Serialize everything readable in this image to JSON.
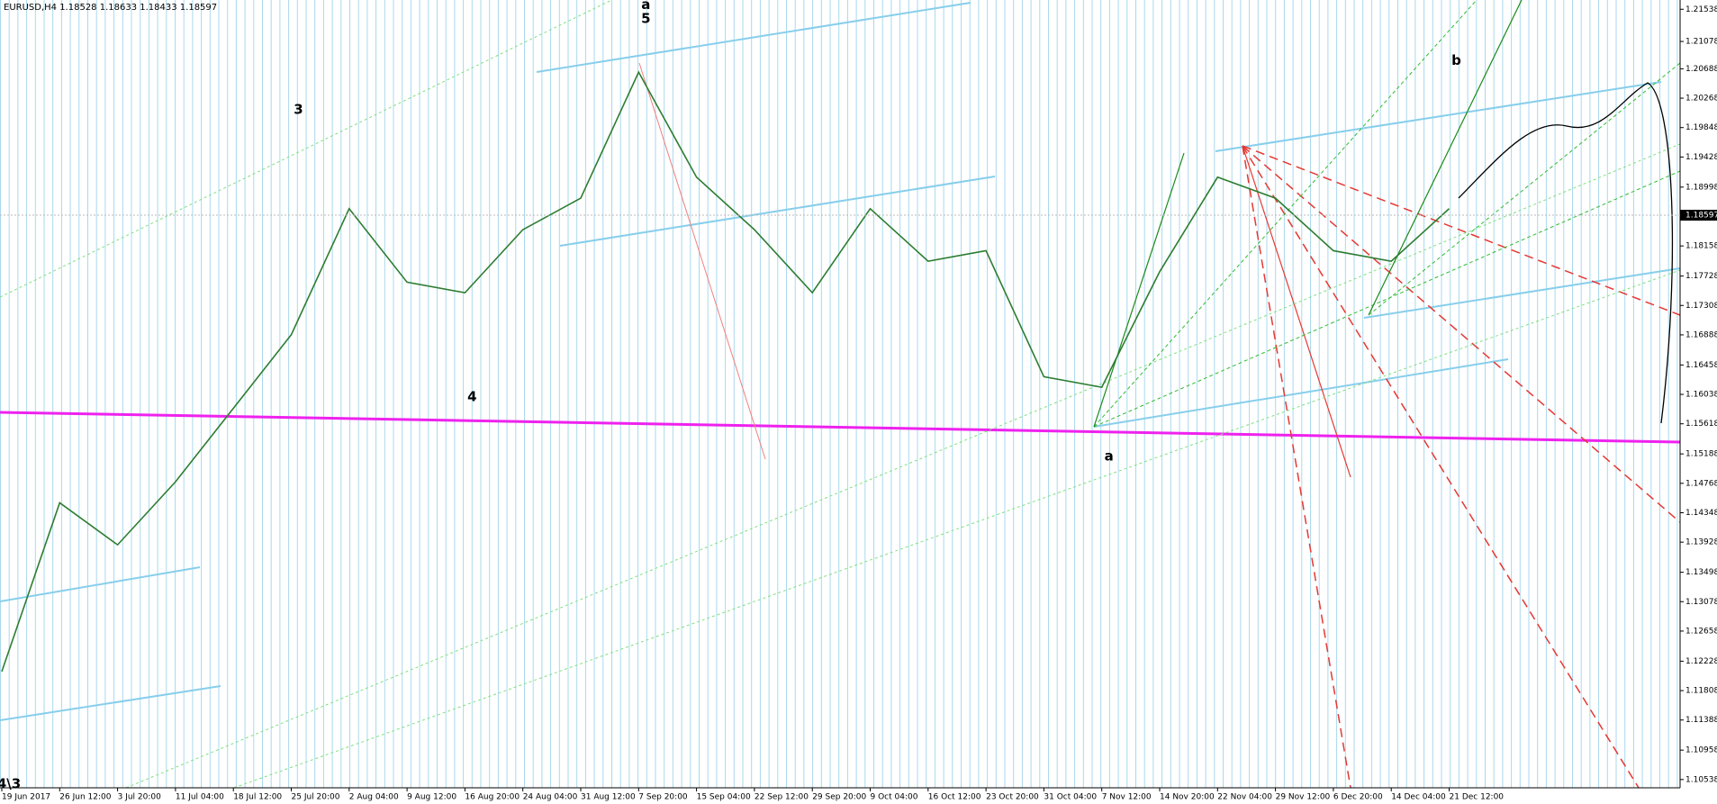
{
  "chart_data": {
    "type": "line",
    "title": "EURUSD,H4  1.18528 1.18633 1.18433 1.18597",
    "current_price": 1.18597,
    "categories": [
      "19 Jun 2017",
      "26 Jun 12:00",
      "3 Jul 20:00",
      "11 Jul 04:00",
      "18 Jul 12:00",
      "25 Jul 20:00",
      "2 Aug 04:00",
      "9 Aug 12:00",
      "16 Aug 20:00",
      "24 Aug 04:00",
      "31 Aug 12:00",
      "7 Sep 20:00",
      "15 Sep 04:00",
      "22 Sep 12:00",
      "29 Sep 20:00",
      "9 Oct 04:00",
      "16 Oct 12:00",
      "23 Oct 20:00",
      "31 Oct 04:00",
      "7 Nov 12:00",
      "14 Nov 20:00",
      "22 Nov 04:00",
      "29 Nov 12:00",
      "6 Dec 20:00",
      "14 Dec 04:00",
      "21 Dec 12:00"
    ],
    "series": [
      {
        "name": "EURUSD",
        "color": "#2e7d32",
        "values": [
          1.1208,
          1.1449,
          1.1389,
          1.1479,
          1.1584,
          1.1689,
          1.1869,
          1.1764,
          1.1749,
          1.1839,
          1.1884,
          1.2064,
          1.1914,
          1.1839,
          1.1749,
          1.1869,
          1.1794,
          1.1809,
          1.1629,
          1.1614,
          1.1779,
          1.1914,
          1.1884,
          1.1809,
          1.1794,
          1.1869
        ]
      }
    ],
    "annotations": [
      {
        "text": "4\\3",
        "category": "19 Jun 2017",
        "y": 1.1047,
        "color": "#1f9a1f"
      },
      {
        "text": "3",
        "category": "25 Jul 20:00",
        "y": 1.201,
        "color": "#1f9a1f"
      },
      {
        "text": "4",
        "category": "16 Aug 20:00",
        "y": 1.16,
        "color": "#1f9a1f"
      },
      {
        "text": "a",
        "category": "7 Sep 20:00",
        "y": 1.216,
        "color": "#ff8c00"
      },
      {
        "text": "5",
        "category": "7 Sep 20:00",
        "y": 1.214,
        "color": "#1f9a1f"
      },
      {
        "text": "a",
        "category": "7 Nov 12:00",
        "y": 1.1515,
        "color": "#1f9a1f"
      },
      {
        "text": "b",
        "category": "21 Dec 12:00",
        "y": 1.208,
        "color": "#1f9a1f"
      }
    ],
    "ylim": [
      1.1042,
      1.2167
    ],
    "yticks": [
      1.21538,
      1.21078,
      1.20688,
      1.20268,
      1.19848,
      1.19428,
      1.18998,
      1.18158,
      1.17728,
      1.17308,
      1.16888,
      1.16458,
      1.16038,
      1.15618,
      1.15188,
      1.14768,
      1.14348,
      1.13928,
      1.13498,
      1.13078,
      1.12658,
      1.12228,
      1.11808,
      1.11388,
      1.10958,
      1.10538
    ]
  }
}
